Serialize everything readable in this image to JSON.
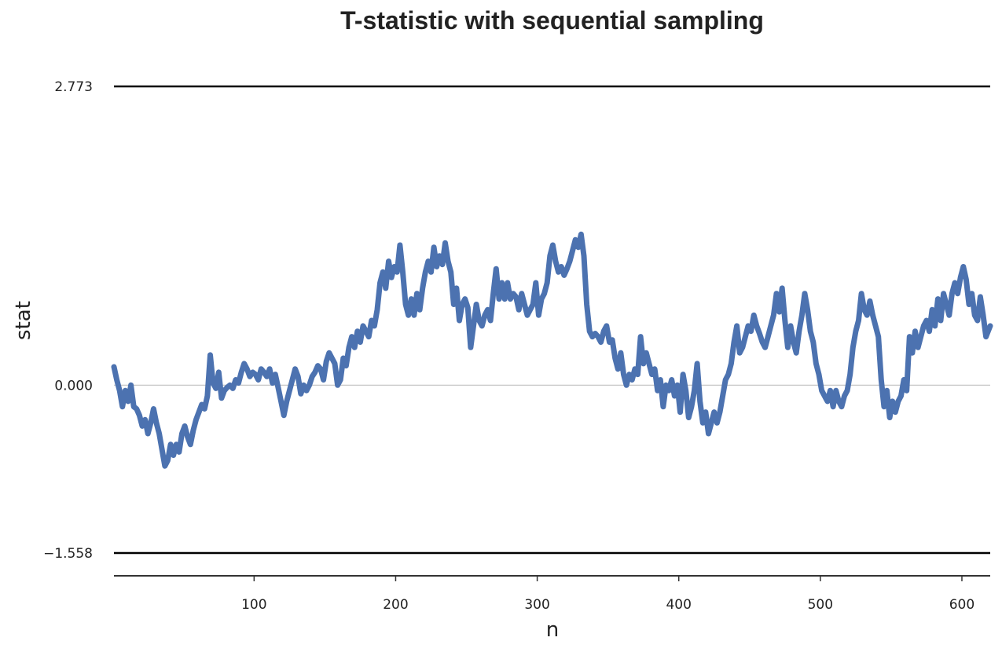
{
  "chart_data": {
    "type": "line",
    "title": "T-statistic with sequential sampling",
    "xlabel": "n",
    "ylabel": "stat",
    "xlim": [
      1,
      620
    ],
    "ylim": [
      -1.558,
      2.773
    ],
    "x_ticks": [
      100,
      200,
      300,
      400,
      500,
      600
    ],
    "y_ticks": [
      "2.773",
      "0.000",
      "−1.558"
    ],
    "boundaries": [
      {
        "label": "2.773",
        "value": 2.773
      },
      {
        "label": "−1.558",
        "value": -1.558
      }
    ],
    "zero_line": 0.0,
    "grid": false,
    "legend": "none",
    "colors": {
      "series": "#4C72B0",
      "boundary": "#000000",
      "zero": "#c0c0c0",
      "axis": "#333333",
      "text": "#222222"
    },
    "series": [
      {
        "points": [
          [
            1,
            0.17
          ],
          [
            3,
            0.05
          ],
          [
            5,
            -0.05
          ],
          [
            7,
            -0.2
          ],
          [
            9,
            -0.05
          ],
          [
            11,
            -0.15
          ],
          [
            13,
            0.0
          ],
          [
            15,
            -0.2
          ],
          [
            17,
            -0.22
          ],
          [
            19,
            -0.28
          ],
          [
            21,
            -0.38
          ],
          [
            23,
            -0.32
          ],
          [
            25,
            -0.45
          ],
          [
            27,
            -0.35
          ],
          [
            29,
            -0.22
          ],
          [
            31,
            -0.35
          ],
          [
            33,
            -0.45
          ],
          [
            35,
            -0.6
          ],
          [
            37,
            -0.75
          ],
          [
            39,
            -0.7
          ],
          [
            41,
            -0.55
          ],
          [
            43,
            -0.65
          ],
          [
            45,
            -0.55
          ],
          [
            47,
            -0.62
          ],
          [
            49,
            -0.45
          ],
          [
            51,
            -0.38
          ],
          [
            53,
            -0.48
          ],
          [
            55,
            -0.55
          ],
          [
            57,
            -0.42
          ],
          [
            59,
            -0.32
          ],
          [
            61,
            -0.25
          ],
          [
            63,
            -0.18
          ],
          [
            65,
            -0.22
          ],
          [
            67,
            -0.1
          ],
          [
            69,
            0.28
          ],
          [
            71,
            0.02
          ],
          [
            73,
            -0.03
          ],
          [
            75,
            0.12
          ],
          [
            77,
            -0.12
          ],
          [
            79,
            -0.05
          ],
          [
            81,
            -0.02
          ],
          [
            83,
            0.0
          ],
          [
            85,
            -0.03
          ],
          [
            87,
            0.05
          ],
          [
            89,
            0.02
          ],
          [
            91,
            0.12
          ],
          [
            93,
            0.2
          ],
          [
            95,
            0.15
          ],
          [
            97,
            0.08
          ],
          [
            99,
            0.12
          ],
          [
            101,
            0.1
          ],
          [
            103,
            0.05
          ],
          [
            105,
            0.15
          ],
          [
            107,
            0.12
          ],
          [
            109,
            0.08
          ],
          [
            111,
            0.15
          ],
          [
            113,
            0.02
          ],
          [
            115,
            0.1
          ],
          [
            117,
            -0.02
          ],
          [
            119,
            -0.15
          ],
          [
            121,
            -0.28
          ],
          [
            123,
            -0.15
          ],
          [
            125,
            -0.05
          ],
          [
            127,
            0.05
          ],
          [
            129,
            0.15
          ],
          [
            131,
            0.08
          ],
          [
            133,
            -0.08
          ],
          [
            135,
            0.0
          ],
          [
            137,
            -0.05
          ],
          [
            139,
            0.0
          ],
          [
            141,
            0.08
          ],
          [
            143,
            0.12
          ],
          [
            145,
            0.18
          ],
          [
            147,
            0.15
          ],
          [
            149,
            0.05
          ],
          [
            151,
            0.22
          ],
          [
            153,
            0.3
          ],
          [
            155,
            0.25
          ],
          [
            157,
            0.2
          ],
          [
            159,
            0.0
          ],
          [
            161,
            0.05
          ],
          [
            163,
            0.25
          ],
          [
            165,
            0.18
          ],
          [
            167,
            0.35
          ],
          [
            169,
            0.45
          ],
          [
            171,
            0.35
          ],
          [
            173,
            0.5
          ],
          [
            175,
            0.4
          ],
          [
            177,
            0.55
          ],
          [
            179,
            0.5
          ],
          [
            181,
            0.45
          ],
          [
            183,
            0.6
          ],
          [
            185,
            0.55
          ],
          [
            187,
            0.7
          ],
          [
            189,
            0.95
          ],
          [
            191,
            1.05
          ],
          [
            193,
            0.9
          ],
          [
            195,
            1.15
          ],
          [
            197,
            1.0
          ],
          [
            199,
            1.1
          ],
          [
            201,
            1.05
          ],
          [
            203,
            1.3
          ],
          [
            205,
            1.05
          ],
          [
            207,
            0.75
          ],
          [
            209,
            0.65
          ],
          [
            211,
            0.8
          ],
          [
            213,
            0.65
          ],
          [
            215,
            0.85
          ],
          [
            217,
            0.7
          ],
          [
            219,
            0.9
          ],
          [
            221,
            1.05
          ],
          [
            223,
            1.15
          ],
          [
            225,
            1.05
          ],
          [
            227,
            1.28
          ],
          [
            229,
            1.1
          ],
          [
            231,
            1.2
          ],
          [
            233,
            1.12
          ],
          [
            235,
            1.32
          ],
          [
            237,
            1.15
          ],
          [
            239,
            1.05
          ],
          [
            241,
            0.75
          ],
          [
            243,
            0.9
          ],
          [
            245,
            0.6
          ],
          [
            247,
            0.75
          ],
          [
            249,
            0.8
          ],
          [
            251,
            0.72
          ],
          [
            253,
            0.35
          ],
          [
            255,
            0.55
          ],
          [
            257,
            0.75
          ],
          [
            259,
            0.6
          ],
          [
            261,
            0.55
          ],
          [
            263,
            0.65
          ],
          [
            265,
            0.7
          ],
          [
            267,
            0.6
          ],
          [
            269,
            0.85
          ],
          [
            271,
            1.08
          ],
          [
            273,
            0.8
          ],
          [
            275,
            0.95
          ],
          [
            277,
            0.8
          ],
          [
            279,
            0.95
          ],
          [
            281,
            0.8
          ],
          [
            283,
            0.85
          ],
          [
            285,
            0.82
          ],
          [
            287,
            0.7
          ],
          [
            289,
            0.85
          ],
          [
            291,
            0.75
          ],
          [
            293,
            0.65
          ],
          [
            295,
            0.7
          ],
          [
            297,
            0.75
          ],
          [
            299,
            0.95
          ],
          [
            301,
            0.65
          ],
          [
            303,
            0.8
          ],
          [
            305,
            0.85
          ],
          [
            307,
            0.95
          ],
          [
            309,
            1.2
          ],
          [
            311,
            1.3
          ],
          [
            313,
            1.15
          ],
          [
            315,
            1.05
          ],
          [
            317,
            1.1
          ],
          [
            319,
            1.02
          ],
          [
            321,
            1.08
          ],
          [
            323,
            1.15
          ],
          [
            325,
            1.25
          ],
          [
            327,
            1.35
          ],
          [
            329,
            1.28
          ],
          [
            331,
            1.4
          ],
          [
            333,
            1.2
          ],
          [
            335,
            0.75
          ],
          [
            337,
            0.5
          ],
          [
            339,
            0.45
          ],
          [
            341,
            0.48
          ],
          [
            343,
            0.45
          ],
          [
            345,
            0.4
          ],
          [
            347,
            0.5
          ],
          [
            349,
            0.55
          ],
          [
            351,
            0.4
          ],
          [
            353,
            0.42
          ],
          [
            355,
            0.25
          ],
          [
            357,
            0.15
          ],
          [
            359,
            0.3
          ],
          [
            361,
            0.1
          ],
          [
            363,
            0.0
          ],
          [
            365,
            0.1
          ],
          [
            367,
            0.05
          ],
          [
            369,
            0.15
          ],
          [
            371,
            0.1
          ],
          [
            373,
            0.45
          ],
          [
            375,
            0.2
          ],
          [
            377,
            0.3
          ],
          [
            379,
            0.2
          ],
          [
            381,
            0.1
          ],
          [
            383,
            0.15
          ],
          [
            385,
            -0.05
          ],
          [
            387,
            0.05
          ],
          [
            389,
            -0.2
          ],
          [
            391,
            0.0
          ],
          [
            393,
            -0.05
          ],
          [
            395,
            0.05
          ],
          [
            397,
            -0.1
          ],
          [
            399,
            0.0
          ],
          [
            401,
            -0.25
          ],
          [
            403,
            0.1
          ],
          [
            405,
            -0.05
          ],
          [
            407,
            -0.3
          ],
          [
            409,
            -0.2
          ],
          [
            411,
            -0.05
          ],
          [
            413,
            0.2
          ],
          [
            415,
            -0.15
          ],
          [
            417,
            -0.35
          ],
          [
            419,
            -0.25
          ],
          [
            421,
            -0.45
          ],
          [
            423,
            -0.35
          ],
          [
            425,
            -0.25
          ],
          [
            427,
            -0.35
          ],
          [
            429,
            -0.25
          ],
          [
            431,
            -0.1
          ],
          [
            433,
            0.05
          ],
          [
            435,
            0.1
          ],
          [
            437,
            0.2
          ],
          [
            439,
            0.4
          ],
          [
            441,
            0.55
          ],
          [
            443,
            0.3
          ],
          [
            445,
            0.35
          ],
          [
            447,
            0.45
          ],
          [
            449,
            0.55
          ],
          [
            451,
            0.5
          ],
          [
            453,
            0.65
          ],
          [
            455,
            0.55
          ],
          [
            457,
            0.48
          ],
          [
            459,
            0.4
          ],
          [
            461,
            0.35
          ],
          [
            463,
            0.45
          ],
          [
            465,
            0.55
          ],
          [
            467,
            0.65
          ],
          [
            469,
            0.85
          ],
          [
            471,
            0.68
          ],
          [
            473,
            0.9
          ],
          [
            475,
            0.6
          ],
          [
            477,
            0.35
          ],
          [
            479,
            0.55
          ],
          [
            481,
            0.4
          ],
          [
            483,
            0.3
          ],
          [
            485,
            0.5
          ],
          [
            487,
            0.65
          ],
          [
            489,
            0.85
          ],
          [
            491,
            0.7
          ],
          [
            493,
            0.5
          ],
          [
            495,
            0.4
          ],
          [
            497,
            0.2
          ],
          [
            499,
            0.1
          ],
          [
            501,
            -0.05
          ],
          [
            503,
            -0.1
          ],
          [
            505,
            -0.15
          ],
          [
            507,
            -0.05
          ],
          [
            509,
            -0.2
          ],
          [
            511,
            -0.05
          ],
          [
            513,
            -0.15
          ],
          [
            515,
            -0.2
          ],
          [
            517,
            -0.1
          ],
          [
            519,
            -0.05
          ],
          [
            521,
            0.1
          ],
          [
            523,
            0.35
          ],
          [
            525,
            0.5
          ],
          [
            527,
            0.6
          ],
          [
            529,
            0.85
          ],
          [
            531,
            0.7
          ],
          [
            533,
            0.65
          ],
          [
            535,
            0.78
          ],
          [
            537,
            0.65
          ],
          [
            539,
            0.55
          ],
          [
            541,
            0.45
          ],
          [
            543,
            0.05
          ],
          [
            545,
            -0.2
          ],
          [
            547,
            -0.05
          ],
          [
            549,
            -0.3
          ],
          [
            551,
            -0.15
          ],
          [
            553,
            -0.25
          ],
          [
            555,
            -0.15
          ],
          [
            557,
            -0.1
          ],
          [
            559,
            0.05
          ],
          [
            561,
            -0.05
          ],
          [
            563,
            0.45
          ],
          [
            565,
            0.3
          ],
          [
            567,
            0.5
          ],
          [
            569,
            0.35
          ],
          [
            571,
            0.45
          ],
          [
            573,
            0.55
          ],
          [
            575,
            0.6
          ],
          [
            577,
            0.5
          ],
          [
            579,
            0.7
          ],
          [
            581,
            0.55
          ],
          [
            583,
            0.8
          ],
          [
            585,
            0.6
          ],
          [
            587,
            0.85
          ],
          [
            589,
            0.75
          ],
          [
            591,
            0.65
          ],
          [
            593,
            0.85
          ],
          [
            595,
            0.95
          ],
          [
            597,
            0.85
          ],
          [
            599,
            1.0
          ],
          [
            601,
            1.1
          ],
          [
            603,
            0.98
          ],
          [
            605,
            0.75
          ],
          [
            607,
            0.85
          ],
          [
            609,
            0.65
          ],
          [
            611,
            0.6
          ],
          [
            613,
            0.82
          ],
          [
            615,
            0.65
          ],
          [
            617,
            0.45
          ],
          [
            620,
            0.55
          ]
        ]
      }
    ]
  }
}
